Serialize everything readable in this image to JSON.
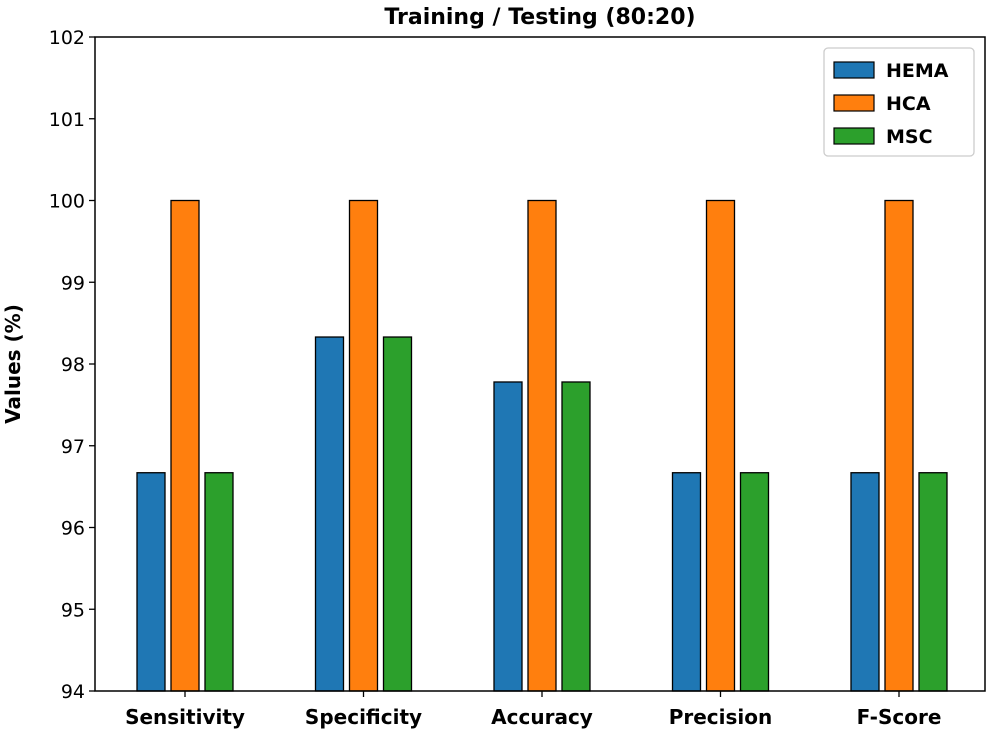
{
  "chart_data": {
    "type": "bar",
    "title": "Training / Testing (80:20)",
    "xlabel": "",
    "ylabel": "Values (%)",
    "ylim": [
      94,
      102
    ],
    "yticks": [
      94,
      95,
      96,
      97,
      98,
      99,
      100,
      101,
      102
    ],
    "categories": [
      "Sensitivity",
      "Specificity",
      "Accuracy",
      "Precision",
      "F-Score"
    ],
    "series": [
      {
        "name": "HEMA",
        "color": "#1f77b4",
        "values": [
          96.67,
          98.33,
          97.78,
          96.67,
          96.67
        ]
      },
      {
        "name": "HCA",
        "color": "#ff7f0e",
        "values": [
          100,
          100,
          100,
          100,
          100
        ]
      },
      {
        "name": "MSC",
        "color": "#2ca02c",
        "values": [
          96.67,
          98.33,
          97.78,
          96.67,
          96.67
        ]
      }
    ],
    "legend_position": "top-right",
    "grid": false
  }
}
